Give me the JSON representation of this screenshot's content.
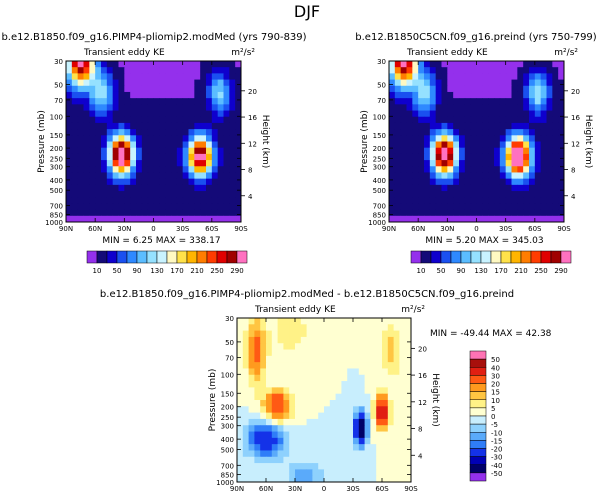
{
  "figure_title": "DJF",
  "chart_data": [
    {
      "type": "heatmap",
      "title": "b.e12.B1850.f09_g16.PIMP4-pliomip2.modMed (yrs 790-839)",
      "subtitle": "Transient eddy KE",
      "units_label": "m²/s²",
      "xlabel": "",
      "ylabel": "Pressure (mb)",
      "right_label": "Height (km)",
      "x_ticks": [
        "90N",
        "60N",
        "30N",
        "0",
        "30S",
        "60S",
        "90S"
      ],
      "x_tick_values": [
        90,
        60,
        30,
        0,
        -30,
        -60,
        -90
      ],
      "y_ticks": [
        "30",
        "50",
        "70",
        "100",
        "150",
        "200",
        "250",
        "300",
        "400",
        "500",
        "700",
        "850",
        "1000"
      ],
      "y_tick_values": [
        30,
        50,
        70,
        100,
        150,
        200,
        250,
        300,
        400,
        500,
        700,
        850,
        1000
      ],
      "height_ticks": [
        "20",
        "16",
        "12",
        "8",
        "4"
      ],
      "height_tick_values": [
        20,
        16,
        12,
        8,
        4
      ],
      "stats": "MIN =   6.25   MAX = 338.17",
      "min": 6.25,
      "max": 338.17,
      "jets": [
        {
          "lat": 33,
          "p": 230,
          "peak": 338
        },
        {
          "lat": -48,
          "p": 240,
          "peak": 300
        }
      ]
    },
    {
      "type": "heatmap",
      "title": "b.e12.B1850C5CN.f09_g16.preind (yrs 750-799)",
      "subtitle": "Transient eddy KE",
      "units_label": "m²/s²",
      "xlabel": "",
      "ylabel": "Pressure (mb)",
      "right_label": "Height (km)",
      "x_ticks": [
        "90N",
        "60N",
        "30N",
        "0",
        "30S",
        "60S",
        "90S"
      ],
      "x_tick_values": [
        90,
        60,
        30,
        0,
        -30,
        -60,
        -90
      ],
      "y_ticks": [
        "30",
        "50",
        "70",
        "100",
        "150",
        "200",
        "250",
        "300",
        "400",
        "500",
        "700",
        "850",
        "1000"
      ],
      "y_tick_values": [
        30,
        50,
        70,
        100,
        150,
        200,
        250,
        300,
        400,
        500,
        700,
        850,
        1000
      ],
      "height_ticks": [
        "20",
        "16",
        "12",
        "8",
        "4"
      ],
      "height_tick_values": [
        20,
        16,
        12,
        8,
        4
      ],
      "stats": "MIN =   5.20   MAX = 345.03",
      "min": 5.2,
      "max": 345.03,
      "jets": [
        {
          "lat": 33,
          "p": 230,
          "peak": 330
        },
        {
          "lat": -43,
          "p": 240,
          "peak": 345
        }
      ]
    },
    {
      "type": "heatmap",
      "title": "b.e12.B1850.f09_g16.PIMP4-pliomip2.modMed - b.e12.B1850C5CN.f09_g16.preind",
      "subtitle": "Transient eddy KE",
      "units_label": "m²/s²",
      "xlabel": "",
      "ylabel": "Pressure (mb)",
      "right_label": "Height (km)",
      "x_ticks": [
        "90N",
        "60N",
        "30N",
        "0",
        "30S",
        "60S",
        "90S"
      ],
      "x_tick_values": [
        90,
        60,
        30,
        0,
        -30,
        -60,
        -90
      ],
      "y_ticks": [
        "30",
        "50",
        "70",
        "100",
        "150",
        "200",
        "250",
        "300",
        "400",
        "500",
        "700",
        "850",
        "1000"
      ],
      "y_tick_values": [
        30,
        50,
        70,
        100,
        150,
        200,
        250,
        300,
        400,
        500,
        700,
        850,
        1000
      ],
      "height_ticks": [
        "20",
        "16",
        "12",
        "8",
        "4"
      ],
      "height_tick_values": [
        20,
        16,
        12,
        8,
        4
      ],
      "stats": "MIN = -49.44   MAX =  42.38",
      "min": -49.44,
      "max": 42.38
    }
  ],
  "colorbar_top": {
    "labels": [
      "10",
      "50",
      "90",
      "130",
      "170",
      "210",
      "250",
      "290"
    ],
    "levels": [
      10,
      30,
      50,
      70,
      90,
      110,
      130,
      150,
      170,
      190,
      210,
      230,
      250,
      270,
      290
    ],
    "colors": [
      "#9430ec",
      "#140a78",
      "#0f00cd",
      "#1a50f0",
      "#2e89ff",
      "#5bbdff",
      "#95e1ff",
      "#c9f3ff",
      "#fff9c2",
      "#ffe24a",
      "#ffb500",
      "#ff7d00",
      "#ff3c00",
      "#e00000",
      "#a00000",
      "#ff71c0"
    ]
  },
  "colorbar_diff": {
    "labels": [
      "50",
      "40",
      "30",
      "20",
      "15",
      "10",
      "5",
      "0",
      "-5",
      "-10",
      "-15",
      "-20",
      "-30",
      "-40",
      "-50"
    ],
    "levels": [
      -50,
      -40,
      -30,
      -20,
      -15,
      -10,
      -5,
      0,
      5,
      10,
      15,
      20,
      30,
      40,
      50
    ],
    "colors": [
      "#9430ec",
      "#000067",
      "#0000b4",
      "#1432e8",
      "#2f7df8",
      "#5aaafa",
      "#8ed1fd",
      "#c8eefd",
      "#ffffd1",
      "#fff287",
      "#ffc542",
      "#ff9a1e",
      "#ff5a14",
      "#e11f12",
      "#a8100c",
      "#ff73b4"
    ]
  }
}
